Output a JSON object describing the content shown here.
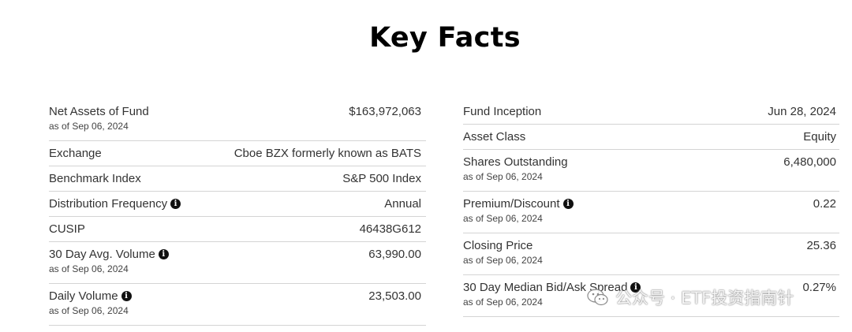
{
  "page_title": "Key Facts",
  "left_column": [
    {
      "label": "Net Assets of Fund",
      "sub": "as of Sep 06, 2024",
      "value": "$163,972,063",
      "info": false
    },
    {
      "label": "Exchange",
      "sub": "",
      "value": "Cboe BZX formerly known as BATS",
      "info": false
    },
    {
      "label": "Benchmark Index",
      "sub": "",
      "value": "S&P 500 Index",
      "info": false
    },
    {
      "label": "Distribution Frequency",
      "sub": "",
      "value": "Annual",
      "info": true
    },
    {
      "label": "CUSIP",
      "sub": "",
      "value": "46438G612",
      "info": false
    },
    {
      "label": "30 Day Avg. Volume",
      "sub": "as of Sep 06, 2024",
      "value": "63,990.00",
      "info": true
    },
    {
      "label": "Daily Volume",
      "sub": "as of Sep 06, 2024",
      "value": "23,503.00",
      "info": true
    }
  ],
  "right_column": [
    {
      "label": "Fund Inception",
      "sub": "",
      "value": "Jun 28, 2024",
      "info": false
    },
    {
      "label": "Asset Class",
      "sub": "",
      "value": "Equity",
      "info": false
    },
    {
      "label": "Shares Outstanding",
      "sub": "as of Sep 06, 2024",
      "value": "6,480,000",
      "info": false
    },
    {
      "label": "Premium/Discount",
      "sub": "as of Sep 06, 2024",
      "value": "0.22",
      "info": true
    },
    {
      "label": "Closing Price",
      "sub": "as of Sep 06, 2024",
      "value": "25.36",
      "info": false
    },
    {
      "label": "30 Day Median Bid/Ask Spread",
      "sub": "as of Sep 06, 2024",
      "value": "0.27%",
      "info": true
    }
  ],
  "info_glyph": "i",
  "watermark": {
    "text": "公众号 · ETF投资指南针",
    "icon": "wechat-icon"
  }
}
